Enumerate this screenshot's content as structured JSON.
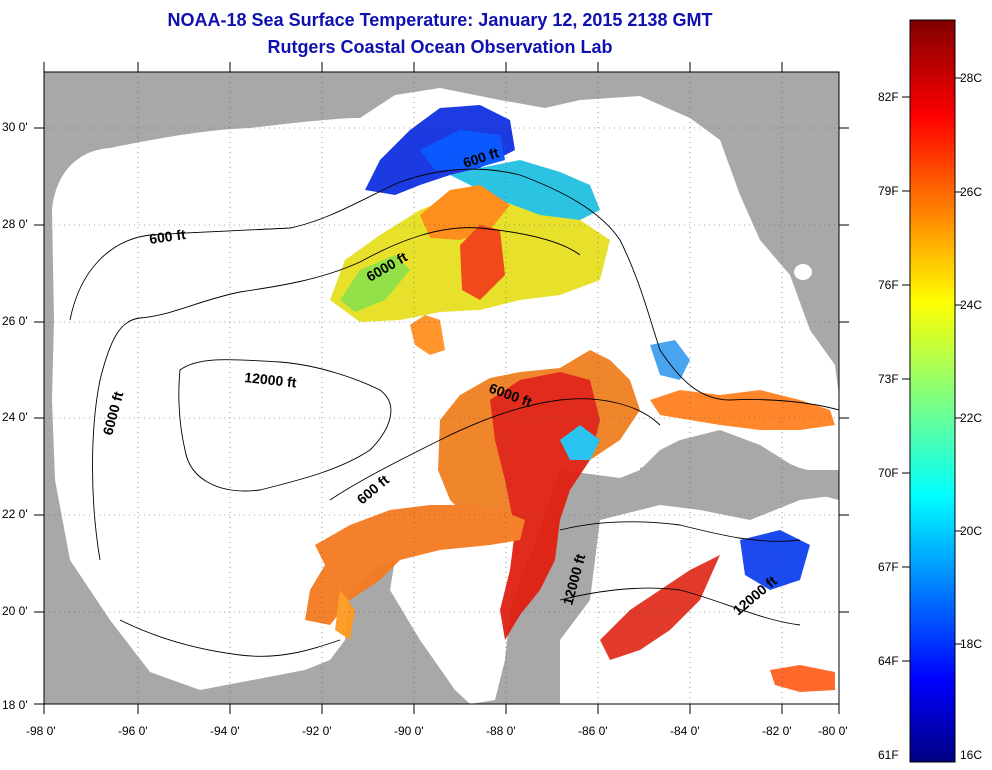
{
  "title": {
    "line1": "NOAA-18 Sea Surface Temperature:  January 12, 2015 2138 GMT",
    "line2": "Rutgers Coastal Ocean Observation Lab"
  },
  "map": {
    "lat_labels": [
      "30 0'",
      "28 0'",
      "26 0'",
      "24 0'",
      "22 0'",
      "20 0'",
      "18 0'"
    ],
    "lon_labels": [
      "-98 0'",
      "-96 0'",
      "-94 0'",
      "-92 0'",
      "-90 0'",
      "-88 0'",
      "-86 0'",
      "-84 0'",
      "-82 0'",
      "-80 0'"
    ],
    "lon_range": [
      -98,
      -80
    ],
    "lat_range": [
      18,
      31
    ],
    "contour_labels": [
      "600 ft",
      "600 ft",
      "6000 ft",
      "6000 ft",
      "12000 ft",
      "6000 ft",
      "600 ft",
      "12000 ft",
      "12000 ft"
    ],
    "colors": {
      "land": "#a8a8a8",
      "ocean": "#ffffff",
      "title": "#1010b0"
    }
  },
  "colorbar": {
    "fahrenheit_labels": [
      "82F",
      "79F",
      "76F",
      "73F",
      "70F",
      "67F",
      "64F",
      "61F"
    ],
    "celsius_labels": [
      "28C",
      "26C",
      "24C",
      "22C",
      "20C",
      "18C",
      "16C"
    ],
    "range_c": [
      16,
      29.5
    ],
    "colormap": "jet"
  }
}
